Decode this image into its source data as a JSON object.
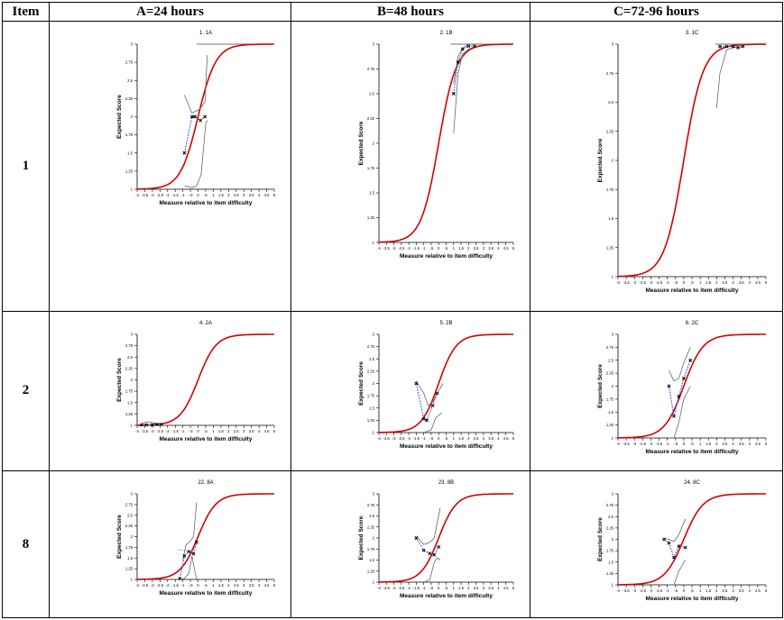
{
  "table": {
    "headers": [
      "Item",
      "A=24 hours",
      "B=48 hours",
      "C=72-96 hours"
    ],
    "rows": [
      {
        "item": "1"
      },
      {
        "item": "2"
      },
      {
        "item": "8"
      }
    ]
  },
  "axis_text": {
    "ylabel": "Expected Score",
    "xlabel": "Measure relative to item difficulty"
  },
  "chart_data": [
    {
      "type": "line",
      "title": "1. 1A",
      "xlim": [
        -4,
        5
      ],
      "ylim": [
        1,
        3
      ],
      "observed": [
        [
          -0.9,
          1.5
        ],
        [
          -0.4,
          2.0
        ],
        [
          -0.2,
          2.0
        ],
        [
          0.15,
          1.95
        ],
        [
          0.45,
          2.0
        ]
      ],
      "ci_upper": [
        [
          -0.9,
          2.3
        ],
        [
          -0.4,
          2.05
        ],
        [
          0.1,
          2.1
        ],
        [
          0.45,
          2.2
        ],
        [
          0.6,
          2.85
        ]
      ],
      "ci_lower": [
        [
          -0.9,
          1.05
        ],
        [
          -0.4,
          1.02
        ],
        [
          -0.1,
          1.05
        ],
        [
          0.2,
          1.2
        ],
        [
          0.5,
          1.9
        ],
        [
          0.6,
          1.95
        ]
      ],
      "top_line": [
        [
          -0.1,
          3
        ],
        [
          5,
          3
        ]
      ]
    },
    {
      "type": "line",
      "title": "2. 1B",
      "xlim": [
        -4,
        5
      ],
      "ylim": [
        1,
        3
      ],
      "observed": [
        [
          1.0,
          2.5
        ],
        [
          1.3,
          2.82
        ],
        [
          1.6,
          2.95
        ],
        [
          2.0,
          2.98
        ],
        [
          2.4,
          2.98
        ]
      ],
      "ci_upper": [
        [
          1.0,
          2.6
        ],
        [
          1.3,
          2.88
        ],
        [
          1.6,
          2.96
        ],
        [
          2.0,
          3.0
        ],
        [
          2.8,
          3.0
        ]
      ],
      "ci_lower": [
        [
          1.0,
          2.1
        ],
        [
          1.3,
          2.7
        ],
        [
          1.6,
          2.9
        ],
        [
          2.0,
          2.95
        ],
        [
          2.4,
          2.97
        ]
      ],
      "top_line": [
        [
          0.8,
          3
        ],
        [
          5,
          3
        ]
      ]
    },
    {
      "type": "line",
      "title": "3. 1C",
      "xlim": [
        -4,
        5
      ],
      "ylim": [
        1,
        3
      ],
      "observed": [
        [
          2.2,
          2.98
        ],
        [
          2.6,
          2.98
        ],
        [
          3.0,
          2.98
        ],
        [
          3.3,
          2.97
        ],
        [
          3.6,
          2.98
        ]
      ],
      "ci_upper": [
        [
          2.2,
          3.0
        ],
        [
          3.6,
          3.0
        ]
      ],
      "ci_lower": [
        [
          2.0,
          2.45
        ],
        [
          2.2,
          2.75
        ],
        [
          2.6,
          2.95
        ],
        [
          3.0,
          2.97
        ],
        [
          3.6,
          2.98
        ]
      ],
      "top_line": [
        [
          1.9,
          3
        ],
        [
          5,
          3
        ]
      ]
    },
    {
      "type": "line",
      "title": "4. 2A",
      "xlim": [
        -4,
        5
      ],
      "ylim": [
        1,
        3
      ],
      "observed": [
        [
          -3.7,
          1.01
        ],
        [
          -3.4,
          1.01
        ],
        [
          -3.0,
          1.01
        ],
        [
          -2.7,
          1.02
        ],
        [
          -2.4,
          1.02
        ]
      ],
      "ci_upper": [
        [
          -3.7,
          1.05
        ],
        [
          -3.3,
          1.08
        ],
        [
          -3.0,
          1.06
        ],
        [
          -2.7,
          1.04
        ],
        [
          -2.2,
          1.04
        ]
      ],
      "ci_lower": [
        [
          -3.7,
          1.0
        ],
        [
          -2.2,
          1.0
        ]
      ],
      "top_line": []
    },
    {
      "type": "line",
      "title": "5. 2B",
      "xlim": [
        -4,
        5
      ],
      "ylim": [
        1,
        3
      ],
      "observed": [
        [
          -1.5,
          2.0
        ],
        [
          -1.0,
          1.28
        ],
        [
          -0.8,
          1.25
        ],
        [
          -0.4,
          1.55
        ],
        [
          -0.1,
          1.8
        ]
      ],
      "ci_upper": [
        [
          -1.5,
          2.05
        ],
        [
          -1.0,
          1.8
        ],
        [
          -0.7,
          1.55
        ],
        [
          -0.4,
          1.62
        ],
        [
          0.0,
          1.85
        ],
        [
          0.3,
          2.0
        ]
      ],
      "ci_lower": [
        [
          -1.0,
          1.0
        ],
        [
          -0.5,
          1.05
        ],
        [
          -0.2,
          1.3
        ],
        [
          0.0,
          1.35
        ],
        [
          0.2,
          1.4
        ]
      ],
      "top_line": []
    },
    {
      "type": "line",
      "title": "6. 2C",
      "xlim": [
        -4,
        5
      ],
      "ylim": [
        1,
        3
      ],
      "observed": [
        [
          -0.9,
          2.0
        ],
        [
          -0.6,
          1.42
        ],
        [
          -0.3,
          1.8
        ],
        [
          0.0,
          2.15
        ],
        [
          0.4,
          2.5
        ]
      ],
      "ci_upper": [
        [
          -0.9,
          2.3
        ],
        [
          -0.6,
          2.1
        ],
        [
          -0.3,
          2.15
        ],
        [
          0.0,
          2.45
        ],
        [
          0.4,
          2.75
        ]
      ],
      "ci_lower": [
        [
          -0.9,
          1.0
        ],
        [
          -0.6,
          1.0
        ],
        [
          -0.3,
          1.3
        ],
        [
          0.0,
          1.75
        ],
        [
          0.4,
          2.0
        ]
      ],
      "top_line": []
    },
    {
      "type": "line",
      "title": "22. 8A",
      "xlim": [
        -4,
        5
      ],
      "ylim": [
        1,
        3
      ],
      "observed": [
        [
          -1.2,
          1.02
        ],
        [
          -0.9,
          1.55
        ],
        [
          -0.6,
          1.65
        ],
        [
          -0.3,
          1.6
        ],
        [
          -0.1,
          1.87
        ]
      ],
      "ci_upper": [
        [
          -1.0,
          1.45
        ],
        [
          -0.8,
          1.8
        ],
        [
          -0.5,
          1.9
        ],
        [
          -0.3,
          2.0
        ],
        [
          -0.1,
          2.8
        ]
      ],
      "ci_lower": [
        [
          -1.2,
          1.0
        ],
        [
          -0.9,
          1.02
        ],
        [
          -0.6,
          1.15
        ],
        [
          -0.4,
          1.55
        ],
        [
          -0.3,
          1.35
        ],
        [
          -0.1,
          1.0
        ]
      ],
      "dotted": [
        [
          -1.3,
          1.7
        ],
        [
          -0.6,
          1.65
        ]
      ],
      "top_line": []
    },
    {
      "type": "line",
      "title": "23. 8B",
      "xlim": [
        -4,
        5
      ],
      "ylim": [
        1,
        3
      ],
      "observed": [
        [
          -1.5,
          2.0
        ],
        [
          -1.0,
          1.72
        ],
        [
          -0.6,
          1.65
        ],
        [
          -0.3,
          1.62
        ],
        [
          0.0,
          1.8
        ]
      ],
      "ci_upper": [
        [
          -1.5,
          2.05
        ],
        [
          -1.0,
          1.85
        ],
        [
          -0.6,
          1.9
        ],
        [
          -0.3,
          2.0
        ],
        [
          0.1,
          2.68
        ]
      ],
      "ci_lower": [
        [
          -1.0,
          1.0
        ],
        [
          -0.6,
          1.05
        ],
        [
          -0.3,
          1.45
        ],
        [
          -0.1,
          1.55
        ],
        [
          0.1,
          1.5
        ]
      ],
      "top_line": []
    },
    {
      "type": "line",
      "title": "24. 8C",
      "xlim": [
        -4,
        5
      ],
      "ylim": [
        1,
        3
      ],
      "observed": [
        [
          -1.2,
          2.0
        ],
        [
          -0.9,
          1.92
        ],
        [
          -0.6,
          1.6
        ],
        [
          -0.3,
          1.85
        ],
        [
          0.1,
          1.82
        ]
      ],
      "ci_upper": [
        [
          -1.2,
          2.02
        ],
        [
          -0.9,
          2.0
        ],
        [
          -0.6,
          1.95
        ],
        [
          -0.3,
          2.1
        ],
        [
          0.1,
          2.45
        ]
      ],
      "ci_lower": [
        [
          -0.9,
          1.0
        ],
        [
          -0.6,
          1.0
        ],
        [
          -0.3,
          1.3
        ],
        [
          0.1,
          1.55
        ]
      ],
      "top_line": []
    }
  ]
}
